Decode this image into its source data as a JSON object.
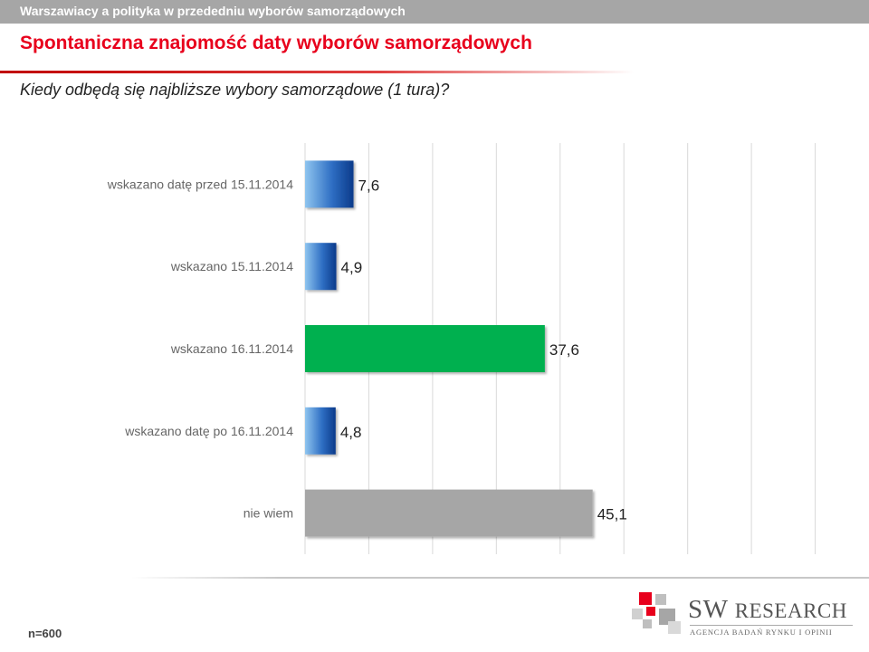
{
  "header": {
    "topbar_text": "Warszawiacy a polityka w przededniu wyborów samorządowych",
    "title": "Spontaniczna znajomość daty wyborów samorządowych",
    "subtitle": "Kiedy odbędą się najbliższe wybory samorządowe (1 tura)?"
  },
  "footer": {
    "sample_note": "n=600",
    "logo_word_1": "SW",
    "logo_word_2": "RESEARCH",
    "logo_tagline": "AGENCJA BADAŃ RYNKU I OPINII"
  },
  "colors": {
    "title_red": "#e8001c",
    "bar_blue_dark": "#0b3a8a",
    "bar_blue_light": "#8fc5ef",
    "bar_green": "#00b04f",
    "bar_gray": "#a6a6a6"
  },
  "chart_data": {
    "type": "bar",
    "orientation": "horizontal",
    "categories": [
      "wskazano datę przed 15.11.2014",
      "wskazano 15.11.2014",
      "wskazano 16.11.2014",
      "wskazano datę po 16.11.2014",
      "nie wiem"
    ],
    "values": [
      7.6,
      4.9,
      37.6,
      4.8,
      45.1
    ],
    "data_labels": [
      "7,6",
      "4,9",
      "37,6",
      "4,8",
      "45,1"
    ],
    "bar_styles": [
      "blue-gradient",
      "blue-gradient",
      "green",
      "blue-gradient",
      "gray"
    ],
    "xlim": [
      0,
      90
    ],
    "grid": true,
    "title": "",
    "xlabel": "",
    "ylabel": ""
  }
}
